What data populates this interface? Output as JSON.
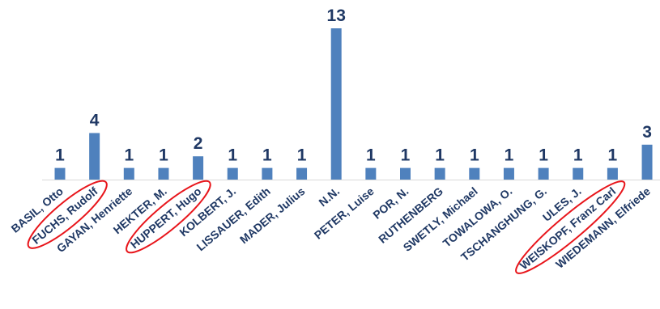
{
  "chart_data": {
    "type": "bar",
    "title": "",
    "xlabel": "",
    "ylabel": "",
    "categories": [
      "BASIL, Otto",
      "FUCHS, Rudolf",
      "GAYAN, Henriette",
      "HEKTER, M.",
      "HUPPERT, Hugo",
      "KOLBERT, J.",
      "LISSAUER, Edith",
      "MADER, Julius",
      "N.N.",
      "PETER, Luise",
      "POR, N.",
      "RUTHENBERG",
      "SWETLY, Michael",
      "TOWALOWA, O.",
      "TSCHANGHUNG, G.",
      "ULES, J.",
      "WEISKOPF, Franz Carl",
      "WIEDEMANN, Elfriede"
    ],
    "values": [
      1,
      4,
      1,
      1,
      2,
      1,
      1,
      1,
      13,
      1,
      1,
      1,
      1,
      1,
      1,
      1,
      1,
      3
    ],
    "ylim": [
      0,
      13
    ],
    "grid": false,
    "legend": "none",
    "data_labels": true,
    "highlighted_categories": [
      "FUCHS, Rudolf",
      "HUPPERT, Hugo",
      "WEISKOPF, Franz Carl"
    ],
    "colors": {
      "bar": "#4f81bd",
      "text": "#1f3864",
      "highlight": "#e8151b"
    }
  }
}
